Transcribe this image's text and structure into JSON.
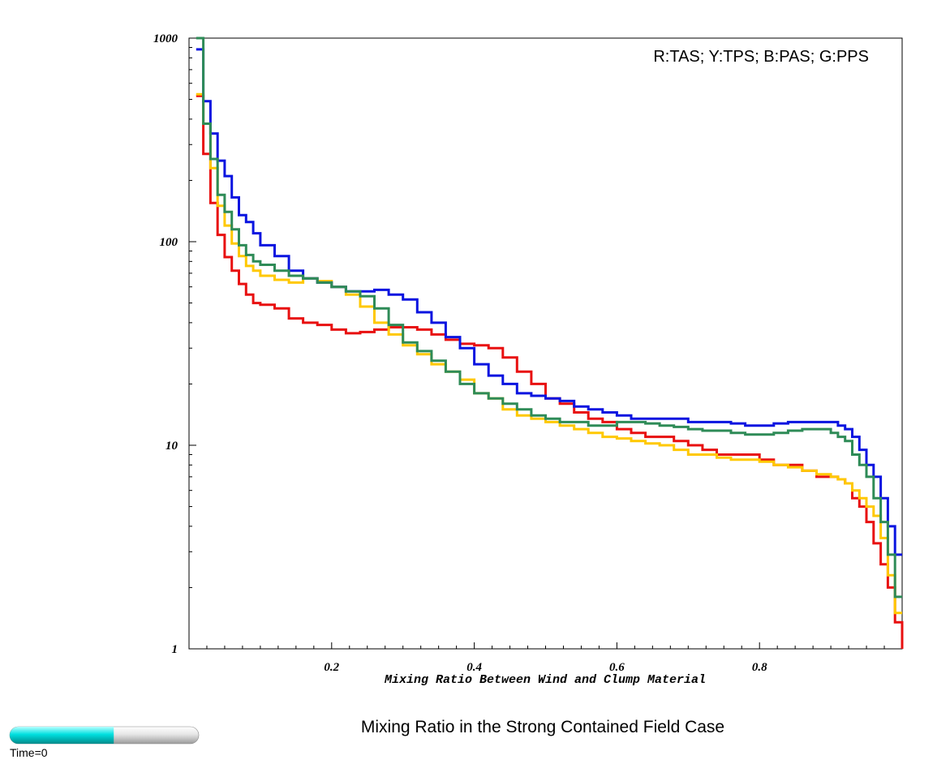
{
  "chart_data": {
    "type": "line",
    "step": true,
    "title": "Mixing Ratio in the Strong Contained Field Case",
    "xlabel": "Mixing Ratio Between Wind and Clump Material",
    "ylabel": "",
    "legend": "R:TAS; Y:TPS; B:PAS; G:PPS",
    "legend_position": "top-right",
    "xlim": [
      0,
      1
    ],
    "ylim": [
      1,
      1000
    ],
    "yscale": "log",
    "grid": false,
    "x_ticks": [
      {
        "value": 0.2,
        "label": "0.2"
      },
      {
        "value": 0.4,
        "label": "0.4"
      },
      {
        "value": 0.6,
        "label": "0.6"
      },
      {
        "value": 0.8,
        "label": "0.8"
      }
    ],
    "y_ticks": [
      {
        "value": 1,
        "label": "1"
      },
      {
        "value": 10,
        "label": "10"
      },
      {
        "value": 100,
        "label": "100"
      },
      {
        "value": 1000,
        "label": "1000"
      }
    ],
    "series": [
      {
        "name": "TAS",
        "color": "#e81010",
        "points": [
          [
            0.01,
            520
          ],
          [
            0.02,
            270
          ],
          [
            0.03,
            155
          ],
          [
            0.04,
            108
          ],
          [
            0.05,
            84
          ],
          [
            0.06,
            72
          ],
          [
            0.07,
            62
          ],
          [
            0.08,
            55
          ],
          [
            0.09,
            50
          ],
          [
            0.1,
            49
          ],
          [
            0.12,
            47
          ],
          [
            0.14,
            42
          ],
          [
            0.16,
            40
          ],
          [
            0.18,
            39
          ],
          [
            0.2,
            37
          ],
          [
            0.22,
            35.5
          ],
          [
            0.24,
            36
          ],
          [
            0.26,
            37
          ],
          [
            0.28,
            38
          ],
          [
            0.3,
            38
          ],
          [
            0.32,
            37
          ],
          [
            0.34,
            35
          ],
          [
            0.36,
            33
          ],
          [
            0.38,
            31.5
          ],
          [
            0.4,
            31
          ],
          [
            0.42,
            30
          ],
          [
            0.44,
            27
          ],
          [
            0.46,
            23
          ],
          [
            0.48,
            20
          ],
          [
            0.5,
            17
          ],
          [
            0.52,
            16
          ],
          [
            0.54,
            14.5
          ],
          [
            0.56,
            13.5
          ],
          [
            0.58,
            13
          ],
          [
            0.6,
            12
          ],
          [
            0.62,
            11.5
          ],
          [
            0.64,
            11
          ],
          [
            0.66,
            11
          ],
          [
            0.68,
            10.5
          ],
          [
            0.7,
            10
          ],
          [
            0.72,
            9.5
          ],
          [
            0.74,
            9
          ],
          [
            0.76,
            9
          ],
          [
            0.78,
            9
          ],
          [
            0.8,
            8.5
          ],
          [
            0.82,
            8
          ],
          [
            0.84,
            8
          ],
          [
            0.86,
            7.5
          ],
          [
            0.88,
            7
          ],
          [
            0.9,
            7
          ],
          [
            0.91,
            6.8
          ],
          [
            0.92,
            6.5
          ],
          [
            0.93,
            5.5
          ],
          [
            0.94,
            5
          ],
          [
            0.95,
            4.2
          ],
          [
            0.96,
            3.3
          ],
          [
            0.97,
            2.6
          ],
          [
            0.98,
            2
          ],
          [
            0.99,
            1.35
          ],
          [
            1.0,
            1.0
          ]
        ]
      },
      {
        "name": "TPS",
        "color": "#ffc800",
        "points": [
          [
            0.01,
            530
          ],
          [
            0.02,
            380
          ],
          [
            0.03,
            230
          ],
          [
            0.04,
            150
          ],
          [
            0.05,
            120
          ],
          [
            0.06,
            98
          ],
          [
            0.07,
            85
          ],
          [
            0.08,
            76
          ],
          [
            0.09,
            72
          ],
          [
            0.1,
            68
          ],
          [
            0.12,
            65
          ],
          [
            0.14,
            63
          ],
          [
            0.16,
            66
          ],
          [
            0.18,
            64
          ],
          [
            0.2,
            60
          ],
          [
            0.22,
            55
          ],
          [
            0.24,
            48
          ],
          [
            0.26,
            40
          ],
          [
            0.28,
            35
          ],
          [
            0.3,
            31
          ],
          [
            0.32,
            28
          ],
          [
            0.34,
            25
          ],
          [
            0.36,
            23
          ],
          [
            0.38,
            21
          ],
          [
            0.4,
            18
          ],
          [
            0.42,
            17
          ],
          [
            0.44,
            15
          ],
          [
            0.46,
            14
          ],
          [
            0.48,
            13.5
          ],
          [
            0.5,
            13
          ],
          [
            0.52,
            12.5
          ],
          [
            0.54,
            12
          ],
          [
            0.56,
            11.5
          ],
          [
            0.58,
            11
          ],
          [
            0.6,
            10.8
          ],
          [
            0.62,
            10.5
          ],
          [
            0.64,
            10.2
          ],
          [
            0.66,
            10
          ],
          [
            0.68,
            9.5
          ],
          [
            0.7,
            9
          ],
          [
            0.72,
            9
          ],
          [
            0.74,
            8.7
          ],
          [
            0.76,
            8.5
          ],
          [
            0.78,
            8.5
          ],
          [
            0.8,
            8.3
          ],
          [
            0.82,
            8
          ],
          [
            0.84,
            7.8
          ],
          [
            0.86,
            7.5
          ],
          [
            0.88,
            7.2
          ],
          [
            0.9,
            7
          ],
          [
            0.91,
            6.8
          ],
          [
            0.92,
            6.5
          ],
          [
            0.93,
            6
          ],
          [
            0.94,
            5.5
          ],
          [
            0.95,
            5
          ],
          [
            0.96,
            4.5
          ],
          [
            0.97,
            3.5
          ],
          [
            0.98,
            2.3
          ],
          [
            0.99,
            1.5
          ],
          [
            1.0,
            1.5
          ]
        ]
      },
      {
        "name": "PAS",
        "color": "#0a14e0",
        "points": [
          [
            0.01,
            880
          ],
          [
            0.02,
            490
          ],
          [
            0.03,
            340
          ],
          [
            0.04,
            250
          ],
          [
            0.05,
            210
          ],
          [
            0.06,
            165
          ],
          [
            0.07,
            135
          ],
          [
            0.08,
            125
          ],
          [
            0.09,
            110
          ],
          [
            0.1,
            96
          ],
          [
            0.12,
            85
          ],
          [
            0.14,
            72
          ],
          [
            0.16,
            66
          ],
          [
            0.18,
            63
          ],
          [
            0.2,
            60
          ],
          [
            0.22,
            57
          ],
          [
            0.24,
            57
          ],
          [
            0.26,
            58
          ],
          [
            0.28,
            55
          ],
          [
            0.3,
            52
          ],
          [
            0.32,
            45
          ],
          [
            0.34,
            40
          ],
          [
            0.36,
            34
          ],
          [
            0.38,
            30
          ],
          [
            0.4,
            25
          ],
          [
            0.42,
            22
          ],
          [
            0.44,
            20
          ],
          [
            0.46,
            18
          ],
          [
            0.48,
            17.5
          ],
          [
            0.5,
            17
          ],
          [
            0.52,
            16.5
          ],
          [
            0.54,
            15.5
          ],
          [
            0.56,
            15
          ],
          [
            0.58,
            14.5
          ],
          [
            0.6,
            14
          ],
          [
            0.62,
            13.5
          ],
          [
            0.64,
            13.5
          ],
          [
            0.66,
            13.5
          ],
          [
            0.68,
            13.5
          ],
          [
            0.7,
            13
          ],
          [
            0.72,
            13
          ],
          [
            0.74,
            13
          ],
          [
            0.76,
            12.8
          ],
          [
            0.78,
            12.5
          ],
          [
            0.8,
            12.5
          ],
          [
            0.82,
            12.8
          ],
          [
            0.84,
            13
          ],
          [
            0.86,
            13
          ],
          [
            0.88,
            13
          ],
          [
            0.9,
            13
          ],
          [
            0.91,
            12.5
          ],
          [
            0.92,
            12
          ],
          [
            0.93,
            11
          ],
          [
            0.94,
            9.5
          ],
          [
            0.95,
            8
          ],
          [
            0.96,
            7
          ],
          [
            0.97,
            5.5
          ],
          [
            0.98,
            4
          ],
          [
            0.99,
            2.9
          ],
          [
            1.0,
            2.9
          ]
        ]
      },
      {
        "name": "PPS",
        "color": "#2e8b57",
        "points": [
          [
            0.01,
            1000
          ],
          [
            0.02,
            380
          ],
          [
            0.03,
            255
          ],
          [
            0.04,
            170
          ],
          [
            0.05,
            140
          ],
          [
            0.06,
            115
          ],
          [
            0.07,
            96
          ],
          [
            0.08,
            86
          ],
          [
            0.09,
            80
          ],
          [
            0.1,
            77
          ],
          [
            0.12,
            72
          ],
          [
            0.14,
            68
          ],
          [
            0.16,
            66
          ],
          [
            0.18,
            63
          ],
          [
            0.2,
            60
          ],
          [
            0.22,
            57
          ],
          [
            0.24,
            54
          ],
          [
            0.26,
            47
          ],
          [
            0.28,
            39
          ],
          [
            0.3,
            32
          ],
          [
            0.32,
            29
          ],
          [
            0.34,
            26
          ],
          [
            0.36,
            23
          ],
          [
            0.38,
            20
          ],
          [
            0.4,
            18
          ],
          [
            0.42,
            17
          ],
          [
            0.44,
            16
          ],
          [
            0.46,
            15
          ],
          [
            0.48,
            14
          ],
          [
            0.5,
            13.5
          ],
          [
            0.52,
            13
          ],
          [
            0.54,
            13
          ],
          [
            0.56,
            12.5
          ],
          [
            0.58,
            12.5
          ],
          [
            0.6,
            13
          ],
          [
            0.62,
            13
          ],
          [
            0.64,
            12.8
          ],
          [
            0.66,
            12.5
          ],
          [
            0.68,
            12.3
          ],
          [
            0.7,
            12
          ],
          [
            0.72,
            11.8
          ],
          [
            0.74,
            11.8
          ],
          [
            0.76,
            11.5
          ],
          [
            0.78,
            11.3
          ],
          [
            0.8,
            11.3
          ],
          [
            0.82,
            11.5
          ],
          [
            0.84,
            11.8
          ],
          [
            0.86,
            12
          ],
          [
            0.88,
            12
          ],
          [
            0.9,
            11.5
          ],
          [
            0.91,
            11
          ],
          [
            0.92,
            10.5
          ],
          [
            0.93,
            9
          ],
          [
            0.94,
            8
          ],
          [
            0.95,
            7
          ],
          [
            0.96,
            5.5
          ],
          [
            0.97,
            4.2
          ],
          [
            0.98,
            2.9
          ],
          [
            0.99,
            1.8
          ],
          [
            1.0,
            1.8
          ]
        ]
      }
    ]
  },
  "time_slider": {
    "label": "Time=0",
    "progress": 0.55,
    "fill_color": "#00e5e5",
    "track_color": "#d8d8d8"
  }
}
